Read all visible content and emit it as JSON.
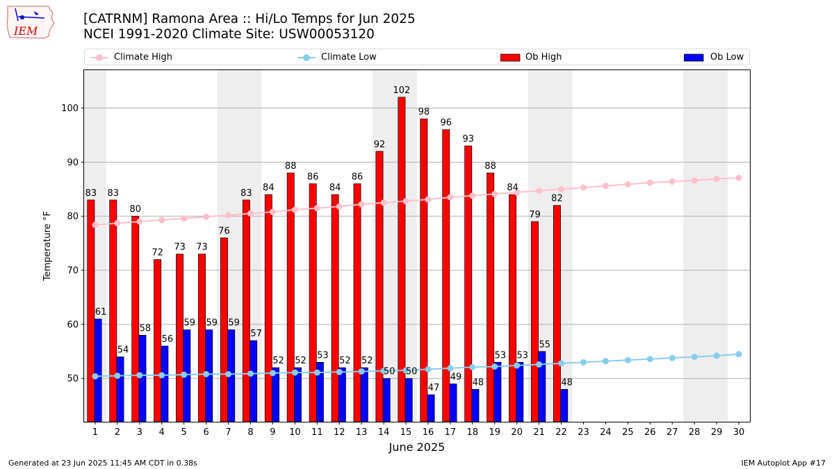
{
  "header": {
    "title_line1": "[CATRNM] Ramona Area :: Hi/Lo Temps for Jun 2025",
    "title_line2": "NCEI 1991-2020 Climate Site: USW00053120"
  },
  "logo": {
    "text": "IEM",
    "color": "#cc0000",
    "outline_color": "#0000cc"
  },
  "legend": {
    "items": [
      {
        "label": "Climate High",
        "kind": "line-marker",
        "color": "#ffc0cb"
      },
      {
        "label": "Climate Low",
        "kind": "line-marker",
        "color": "#87ceeb"
      },
      {
        "label": "Ob High",
        "kind": "bar",
        "color": "#ff0000"
      },
      {
        "label": "Ob Low",
        "kind": "bar",
        "color": "#0000ff"
      }
    ]
  },
  "footer": {
    "left": "Generated at 23 Jun 2025 11:45 AM CDT in 0.38s",
    "right": "IEM Autoplot App #17"
  },
  "chart_data": {
    "type": "bar",
    "title": "[CATRNM] Ramona Area :: Hi/Lo Temps for Jun 2025",
    "xlabel": "June 2025",
    "ylabel": "Temperature °F",
    "ylim": [
      42,
      107
    ],
    "xlim": [
      0.5,
      30.5
    ],
    "yticks": [
      50,
      60,
      70,
      80,
      90,
      100
    ],
    "grid": "horizontal",
    "legend_position": "top",
    "days": [
      1,
      2,
      3,
      4,
      5,
      6,
      7,
      8,
      9,
      10,
      11,
      12,
      13,
      14,
      15,
      16,
      17,
      18,
      19,
      20,
      21,
      22,
      23,
      24,
      25,
      26,
      27,
      28,
      29,
      30
    ],
    "weekend_shading": [
      [
        1,
        1
      ],
      [
        7,
        8
      ],
      [
        14,
        15
      ],
      [
        21,
        22
      ],
      [
        28,
        29
      ]
    ],
    "shade_color": "#eeeeee",
    "series": [
      {
        "name": "Ob High",
        "kind": "bar",
        "color": "#ff0000",
        "values": [
          83,
          83,
          80,
          72,
          73,
          73,
          76,
          83,
          84,
          88,
          86,
          84,
          86,
          92,
          102,
          98,
          96,
          93,
          88,
          84,
          79,
          82
        ]
      },
      {
        "name": "Ob Low",
        "kind": "bar",
        "color": "#0000ff",
        "values": [
          61,
          54,
          58,
          56,
          59,
          59,
          59,
          57,
          52,
          52,
          53,
          52,
          52,
          50,
          50,
          47,
          49,
          48,
          53,
          53,
          55,
          48
        ]
      },
      {
        "name": "Climate High",
        "kind": "line",
        "color": "#ffc0cb",
        "values": [
          78.4,
          78.7,
          79.0,
          79.3,
          79.6,
          79.9,
          80.2,
          80.5,
          80.8,
          81.2,
          81.5,
          81.8,
          82.2,
          82.5,
          82.8,
          83.1,
          83.5,
          83.8,
          84.1,
          84.4,
          84.7,
          85.0,
          85.3,
          85.6,
          85.9,
          86.2,
          86.4,
          86.6,
          86.9,
          87.1
        ]
      },
      {
        "name": "Climate Low",
        "kind": "line",
        "color": "#87ceeb",
        "values": [
          50.4,
          50.5,
          50.6,
          50.6,
          50.7,
          50.8,
          50.8,
          50.9,
          51.0,
          51.1,
          51.1,
          51.2,
          51.3,
          51.4,
          51.5,
          51.7,
          51.9,
          52.1,
          52.2,
          52.4,
          52.6,
          52.8,
          53.0,
          53.2,
          53.4,
          53.6,
          53.8,
          54.0,
          54.2,
          54.5
        ]
      }
    ]
  }
}
